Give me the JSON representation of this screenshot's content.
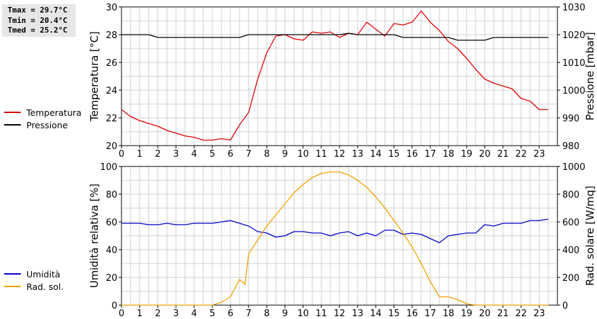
{
  "stats": {
    "tmax": "Tmax = 29.7°C",
    "tmin": "Tmin = 20.4°C",
    "tmed": "Tmed = 25.2°C"
  },
  "legend_top": [
    {
      "label": "Temperatura",
      "color": "#e00000"
    },
    {
      "label": "Pressione",
      "color": "#000000"
    }
  ],
  "legend_bottom": [
    {
      "label": "Umidità",
      "color": "#0000c8"
    },
    {
      "label": "Rad. sol.",
      "color": "#f0a000"
    }
  ],
  "chart_data": [
    {
      "type": "line",
      "xlim": [
        0,
        24
      ],
      "x_ticks": [
        "0",
        "1",
        "2",
        "3",
        "4",
        "5",
        "6",
        "7",
        "8",
        "9",
        "10",
        "11",
        "12",
        "13",
        "14",
        "15",
        "16",
        "17",
        "18",
        "19",
        "20",
        "21",
        "22",
        "23"
      ],
      "ylabel": "Temperatura [°C]",
      "ylim": [
        20,
        30
      ],
      "y_ticks": [
        "20",
        "22",
        "24",
        "26",
        "28",
        "30"
      ],
      "y2label": "Pressione [mbar]",
      "y2lim": [
        980,
        1030
      ],
      "y2_ticks": [
        "980",
        "990",
        "1000",
        "1010",
        "1020",
        "1030"
      ],
      "grid": true,
      "series": [
        {
          "name": "Temperatura",
          "axis": "left",
          "color": "#e00000",
          "x": [
            0,
            0.5,
            1,
            1.5,
            2,
            2.5,
            3,
            3.5,
            4,
            4.5,
            5,
            5.5,
            6,
            6.5,
            7,
            7.5,
            8,
            8.5,
            9,
            9.5,
            10,
            10.5,
            11,
            11.5,
            12,
            12.5,
            13,
            13.5,
            14,
            14.5,
            15,
            15.5,
            16,
            16.5,
            17,
            17.5,
            18,
            18.5,
            19,
            19.5,
            20,
            20.5,
            21,
            21.5,
            22,
            22.5,
            23,
            23.5
          ],
          "y": [
            22.6,
            22.1,
            21.8,
            21.6,
            21.4,
            21.1,
            20.9,
            20.7,
            20.6,
            20.4,
            20.4,
            20.5,
            20.4,
            21.5,
            22.4,
            24.8,
            26.7,
            27.9,
            28.0,
            27.7,
            27.6,
            28.2,
            28.1,
            28.2,
            27.8,
            28.1,
            28.0,
            28.9,
            28.4,
            27.9,
            28.8,
            28.7,
            28.9,
            29.7,
            28.9,
            28.3,
            27.5,
            27.0,
            26.3,
            25.5,
            24.8,
            24.5,
            24.3,
            24.1,
            23.4,
            23.2,
            22.6,
            22.6
          ]
        },
        {
          "name": "Pressione",
          "axis": "right",
          "color": "#000000",
          "x": [
            0,
            1.5,
            2,
            6.5,
            7,
            12,
            12.5,
            13,
            15,
            15.5,
            18,
            18.5,
            20,
            20.5,
            23.5
          ],
          "y": [
            1020,
            1020,
            1019,
            1019,
            1020,
            1020,
            1020.5,
            1020,
            1020,
            1019,
            1019,
            1018,
            1018,
            1019,
            1019
          ]
        }
      ]
    },
    {
      "type": "line",
      "xlim": [
        0,
        24
      ],
      "x_ticks": [
        "0",
        "1",
        "2",
        "3",
        "4",
        "5",
        "6",
        "7",
        "8",
        "9",
        "10",
        "11",
        "12",
        "13",
        "14",
        "15",
        "16",
        "17",
        "18",
        "19",
        "20",
        "21",
        "22",
        "23"
      ],
      "ylabel": "Umidità relativa [%]",
      "ylim": [
        0,
        100
      ],
      "y_ticks": [
        "0",
        "20",
        "40",
        "60",
        "80",
        "100"
      ],
      "y2label": "Rad. solare [W/mq]",
      "y2lim": [
        0,
        1000
      ],
      "y2_ticks": [
        "0",
        "200",
        "400",
        "600",
        "800",
        "1000"
      ],
      "grid": true,
      "series": [
        {
          "name": "Umidità",
          "axis": "left",
          "color": "#0000c8",
          "x": [
            0,
            0.5,
            1,
            1.5,
            2,
            2.5,
            3,
            3.5,
            4,
            4.5,
            5,
            5.5,
            6,
            6.5,
            7,
            7.5,
            8,
            8.5,
            9,
            9.5,
            10,
            10.5,
            11,
            11.5,
            12,
            12.5,
            13,
            13.5,
            14,
            14.5,
            15,
            15.5,
            16,
            16.5,
            17,
            17.5,
            18,
            18.5,
            19,
            19.5,
            20,
            20.5,
            21,
            21.5,
            22,
            22.5,
            23,
            23.5
          ],
          "y": [
            59,
            59,
            59,
            58,
            58,
            59,
            58,
            58,
            59,
            59,
            59,
            60,
            61,
            59,
            57,
            53,
            52,
            49,
            50,
            53,
            53,
            52,
            52,
            50,
            52,
            53,
            50,
            52,
            50,
            54,
            54,
            51,
            52,
            51,
            48,
            45,
            50,
            51,
            52,
            52,
            58,
            57,
            59,
            59,
            59,
            61,
            61,
            62
          ]
        },
        {
          "name": "Rad. sol.",
          "axis": "right",
          "color": "#f0a000",
          "x": [
            0,
            5,
            5.5,
            6,
            6.5,
            6.8,
            7,
            7.5,
            8,
            8.5,
            9,
            9.5,
            10,
            10.5,
            11,
            11.5,
            12,
            12.5,
            13,
            13.5,
            14,
            14.5,
            15,
            15.5,
            16,
            16.5,
            17,
            17.5,
            18,
            18.5,
            19,
            19.5,
            20,
            20.5,
            23.5
          ],
          "y": [
            0,
            0,
            20,
            60,
            185,
            150,
            370,
            470,
            570,
            650,
            730,
            810,
            870,
            920,
            950,
            960,
            960,
            940,
            900,
            850,
            780,
            700,
            610,
            520,
            420,
            300,
            170,
            60,
            60,
            40,
            10,
            0,
            0,
            0,
            0
          ]
        }
      ]
    }
  ]
}
